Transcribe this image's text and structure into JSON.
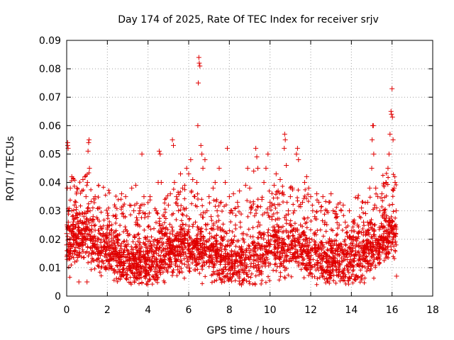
{
  "chart_data": {
    "type": "scatter",
    "title": "Day 174 of 2025, Rate Of TEC Index for receiver srjv",
    "xlabel": "GPS time / hours",
    "ylabel": "ROTI / TECUs",
    "xlim": [
      0,
      18
    ],
    "ylim": [
      0,
      0.09
    ],
    "x_ticks": [
      0,
      2,
      4,
      6,
      8,
      10,
      12,
      14,
      16,
      18
    ],
    "x_tick_labels": [
      "0",
      "2",
      "4",
      "6",
      "8",
      "10",
      "12",
      "14",
      "16",
      "18"
    ],
    "y_ticks": [
      0,
      0.01,
      0.02,
      0.03,
      0.04,
      0.05,
      0.06,
      0.07,
      0.08,
      0.09
    ],
    "y_tick_labels": [
      "0",
      "0.01",
      "0.02",
      "0.03",
      "0.04",
      "0.05",
      "0.06",
      "0.07",
      "0.08",
      "0.09"
    ],
    "grid": true,
    "marker": "plus",
    "color": "#e00000",
    "series": [
      {
        "name": "ROTI",
        "points": [
          [
            0.0,
            0.018
          ],
          [
            0.0,
            0.022
          ],
          [
            0.02,
            0.016
          ],
          [
            0.03,
            0.038
          ],
          [
            0.05,
            0.054
          ],
          [
            0.05,
            0.053
          ],
          [
            0.07,
            0.052
          ],
          [
            0.08,
            0.026
          ],
          [
            0.1,
            0.03
          ],
          [
            0.12,
            0.014
          ],
          [
            0.15,
            0.02
          ],
          [
            0.18,
            0.038
          ],
          [
            0.25,
            0.042
          ],
          [
            0.3,
            0.025
          ],
          [
            0.35,
            0.018
          ],
          [
            0.4,
            0.012
          ],
          [
            0.45,
            0.033
          ],
          [
            0.5,
            0.038
          ],
          [
            0.55,
            0.021
          ],
          [
            0.6,
            0.005
          ],
          [
            0.65,
            0.015
          ],
          [
            0.7,
            0.022
          ],
          [
            0.75,
            0.037
          ],
          [
            0.8,
            0.041
          ],
          [
            0.85,
            0.028
          ],
          [
            0.9,
            0.042
          ],
          [
            0.95,
            0.035
          ],
          [
            1.0,
            0.005
          ],
          [
            1.02,
            0.04
          ],
          [
            1.05,
            0.051
          ],
          [
            1.08,
            0.054
          ],
          [
            1.1,
            0.055
          ],
          [
            1.12,
            0.045
          ],
          [
            1.15,
            0.03
          ],
          [
            1.2,
            0.012
          ],
          [
            1.25,
            0.02
          ],
          [
            1.3,
            0.028
          ],
          [
            1.4,
            0.035
          ],
          [
            1.5,
            0.018
          ],
          [
            1.6,
            0.012
          ],
          [
            1.7,
            0.016
          ],
          [
            1.8,
            0.022
          ],
          [
            1.9,
            0.01
          ],
          [
            2.0,
            0.024
          ],
          [
            2.1,
            0.018
          ],
          [
            2.2,
            0.013
          ],
          [
            2.3,
            0.009
          ],
          [
            2.4,
            0.015
          ],
          [
            2.5,
            0.02
          ],
          [
            2.6,
            0.012
          ],
          [
            2.7,
            0.036
          ],
          [
            2.8,
            0.028
          ],
          [
            2.9,
            0.035
          ],
          [
            3.0,
            0.022
          ],
          [
            3.1,
            0.032
          ],
          [
            3.2,
            0.038
          ],
          [
            3.3,
            0.03
          ],
          [
            3.4,
            0.039
          ],
          [
            3.5,
            0.025
          ],
          [
            3.6,
            0.03
          ],
          [
            3.7,
            0.05
          ],
          [
            3.8,
            0.035
          ],
          [
            3.9,
            0.02
          ],
          [
            4.0,
            0.028
          ],
          [
            4.1,
            0.035
          ],
          [
            4.2,
            0.012
          ],
          [
            4.3,
            0.018
          ],
          [
            4.4,
            0.03
          ],
          [
            4.5,
            0.04
          ],
          [
            4.55,
            0.051
          ],
          [
            4.6,
            0.05
          ],
          [
            4.65,
            0.04
          ],
          [
            4.7,
            0.022
          ],
          [
            4.8,
            0.028
          ],
          [
            4.9,
            0.015
          ],
          [
            5.0,
            0.032
          ],
          [
            5.1,
            0.036
          ],
          [
            5.2,
            0.055
          ],
          [
            5.25,
            0.053
          ],
          [
            5.3,
            0.04
          ],
          [
            5.4,
            0.035
          ],
          [
            5.5,
            0.03
          ],
          [
            5.6,
            0.043
          ],
          [
            5.7,
            0.038
          ],
          [
            5.8,
            0.022
          ],
          [
            5.9,
            0.045
          ],
          [
            6.0,
            0.043
          ],
          [
            6.1,
            0.048
          ],
          [
            6.2,
            0.041
          ],
          [
            6.3,
            0.035
          ],
          [
            6.4,
            0.04
          ],
          [
            6.45,
            0.06
          ],
          [
            6.47,
            0.075
          ],
          [
            6.5,
            0.084
          ],
          [
            6.52,
            0.082
          ],
          [
            6.55,
            0.081
          ],
          [
            6.6,
            0.053
          ],
          [
            6.65,
            0.05
          ],
          [
            6.7,
            0.045
          ],
          [
            6.8,
            0.048
          ],
          [
            6.9,
            0.03
          ],
          [
            7.0,
            0.035
          ],
          [
            7.1,
            0.028
          ],
          [
            7.2,
            0.038
          ],
          [
            7.3,
            0.04
          ],
          [
            7.4,
            0.03
          ],
          [
            7.5,
            0.045
          ],
          [
            7.6,
            0.033
          ],
          [
            7.7,
            0.02
          ],
          [
            7.8,
            0.04
          ],
          [
            7.9,
            0.052
          ],
          [
            8.0,
            0.035
          ],
          [
            8.1,
            0.03
          ],
          [
            8.2,
            0.036
          ],
          [
            8.3,
            0.025
          ],
          [
            8.4,
            0.033
          ],
          [
            8.5,
            0.037
          ],
          [
            8.6,
            0.004
          ],
          [
            8.7,
            0.022
          ],
          [
            8.8,
            0.039
          ],
          [
            8.9,
            0.045
          ],
          [
            9.0,
            0.038
          ],
          [
            9.1,
            0.031
          ],
          [
            9.2,
            0.044
          ],
          [
            9.3,
            0.052
          ],
          [
            9.35,
            0.049
          ],
          [
            9.4,
            0.045
          ],
          [
            9.5,
            0.025
          ],
          [
            9.6,
            0.034
          ],
          [
            9.7,
            0.04
          ],
          [
            9.8,
            0.045
          ],
          [
            9.9,
            0.05
          ],
          [
            10.0,
            0.033
          ],
          [
            10.1,
            0.028
          ],
          [
            10.2,
            0.039
          ],
          [
            10.3,
            0.043
          ],
          [
            10.4,
            0.037
          ],
          [
            10.5,
            0.041
          ],
          [
            10.6,
            0.036
          ],
          [
            10.7,
            0.052
          ],
          [
            10.72,
            0.057
          ],
          [
            10.75,
            0.055
          ],
          [
            10.8,
            0.046
          ],
          [
            10.9,
            0.03
          ],
          [
            11.0,
            0.035
          ],
          [
            11.1,
            0.038
          ],
          [
            11.2,
            0.03
          ],
          [
            11.3,
            0.05
          ],
          [
            11.35,
            0.052
          ],
          [
            11.4,
            0.048
          ],
          [
            11.5,
            0.025
          ],
          [
            11.6,
            0.033
          ],
          [
            11.7,
            0.04
          ],
          [
            11.8,
            0.042
          ],
          [
            11.9,
            0.038
          ],
          [
            12.0,
            0.035
          ],
          [
            12.1,
            0.03
          ],
          [
            12.2,
            0.028
          ],
          [
            12.3,
            0.036
          ],
          [
            12.4,
            0.033
          ],
          [
            12.5,
            0.03
          ],
          [
            12.6,
            0.035
          ],
          [
            12.7,
            0.026
          ],
          [
            12.8,
            0.03
          ],
          [
            12.9,
            0.033
          ],
          [
            13.0,
            0.036
          ],
          [
            13.1,
            0.03
          ],
          [
            13.2,
            0.029
          ],
          [
            13.3,
            0.028
          ],
          [
            13.4,
            0.025
          ],
          [
            13.5,
            0.03
          ],
          [
            13.6,
            0.032
          ],
          [
            13.7,
            0.026
          ],
          [
            13.8,
            0.021
          ],
          [
            13.9,
            0.03
          ],
          [
            14.0,
            0.023
          ],
          [
            14.1,
            0.026
          ],
          [
            14.2,
            0.02
          ],
          [
            14.3,
            0.025
          ],
          [
            14.4,
            0.028
          ],
          [
            14.5,
            0.031
          ],
          [
            14.6,
            0.026
          ],
          [
            14.7,
            0.029
          ],
          [
            14.8,
            0.033
          ],
          [
            14.9,
            0.038
          ],
          [
            15.0,
            0.045
          ],
          [
            15.02,
            0.055
          ],
          [
            15.05,
            0.06
          ],
          [
            15.08,
            0.06
          ],
          [
            15.1,
            0.05
          ],
          [
            15.2,
            0.038
          ],
          [
            15.3,
            0.035
          ],
          [
            15.4,
            0.03
          ],
          [
            15.5,
            0.036
          ],
          [
            15.6,
            0.039
          ],
          [
            15.7,
            0.04
          ],
          [
            15.8,
            0.045
          ],
          [
            15.85,
            0.05
          ],
          [
            15.9,
            0.057
          ],
          [
            15.95,
            0.065
          ],
          [
            15.97,
            0.064
          ],
          [
            16.0,
            0.073
          ],
          [
            16.02,
            0.063
          ],
          [
            16.05,
            0.055
          ],
          [
            16.1,
            0.038
          ],
          [
            16.15,
            0.04
          ],
          [
            16.2,
            0.03
          ],
          [
            16.22,
            0.007
          ]
        ]
      }
    ]
  }
}
